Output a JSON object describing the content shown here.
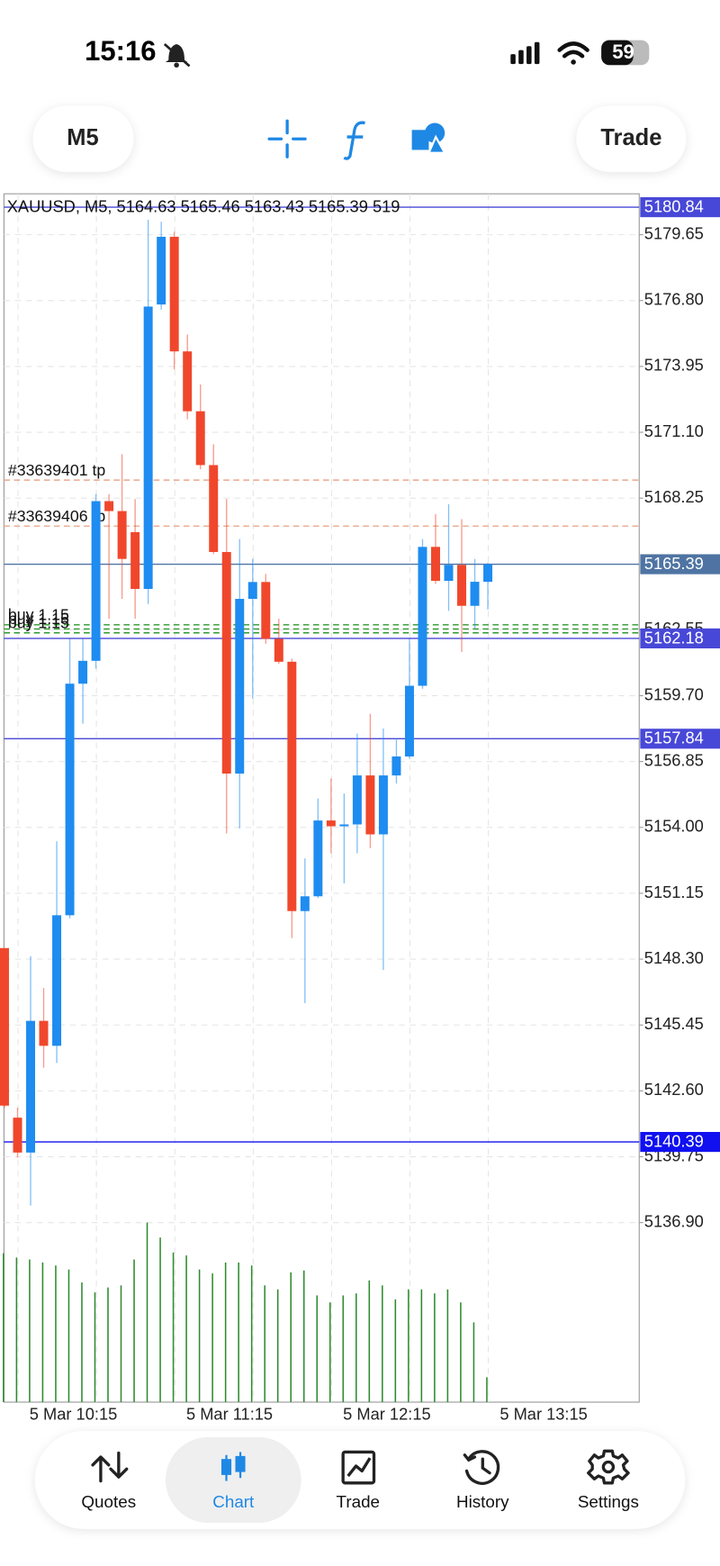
{
  "status_bar": {
    "time": "15:16",
    "battery": "59"
  },
  "toolbar": {
    "timeframe": "M5",
    "trade": "Trade"
  },
  "chart_data": {
    "type": "candlestick",
    "title": "XAUUSD, M5, 5164.63 5165.46 5163.43 5165.39 519",
    "categories": [
      null,
      "5 Mar 10:15",
      null,
      null,
      null,
      null,
      null,
      null,
      null,
      null,
      null,
      null,
      null,
      "5 Mar 11:15",
      null,
      null,
      null,
      null,
      null,
      null,
      null,
      null,
      null,
      null,
      null,
      "5 Mar 12:15",
      null,
      null,
      null,
      null,
      null,
      null,
      null,
      null,
      null,
      null,
      null,
      "5 Mar 13:15"
    ],
    "open": [
      5148.78,
      5141.44,
      5139.93,
      5145.63,
      5144.55,
      5150.2,
      5160.22,
      5161.21,
      5168.12,
      5167.69,
      5166.78,
      5164.32,
      5176.63,
      5179.56,
      5174.6,
      5172.01,
      5169.68,
      5165.92,
      5156.33,
      5163.89,
      5164.62,
      5162.16,
      5161.17,
      5150.38,
      5151.02,
      5154.3,
      5154.05,
      5154.13,
      5156.25,
      5153.7,
      5156.25,
      5157.07,
      5160.13,
      5166.14,
      5164.67,
      5165.36,
      5163.59,
      5164.63
    ],
    "high": [
      5148.78,
      5141.87,
      5148.43,
      5147.05,
      5153.4,
      5162.16,
      5162.16,
      5168.42,
      5168.42,
      5170.15,
      5168.21,
      5180.3,
      5180.21,
      5179.78,
      5175.33,
      5173.17,
      5170.58,
      5168.21,
      5166.48,
      5165.62,
      5164.97,
      5163.03,
      5161.3,
      5152.66,
      5155.25,
      5156.12,
      5155.47,
      5158.06,
      5158.92,
      5158.28,
      5157.85,
      5162.16,
      5166.48,
      5167.56,
      5167.99,
      5167.34,
      5165.62,
      5165.46
    ],
    "low": [
      5141.87,
      5139.71,
      5137.64,
      5143.6,
      5143.81,
      5150.07,
      5158.49,
      5160.87,
      5163.03,
      5163.89,
      5163.03,
      5163.67,
      5176.41,
      5173.82,
      5171.66,
      5169.5,
      5165.83,
      5153.74,
      5153.96,
      5159.57,
      5161.95,
      5161.08,
      5149.21,
      5146.4,
      5150.94,
      5152.88,
      5151.58,
      5152.88,
      5153.1,
      5147.83,
      5155.9,
      5156.98,
      5160.0,
      5164.54,
      5163.37,
      5161.6,
      5162.6,
      5163.43
    ],
    "close": [
      5141.96,
      5139.93,
      5145.63,
      5144.55,
      5150.2,
      5160.22,
      5161.21,
      5168.12,
      5167.69,
      5165.62,
      5164.32,
      5176.54,
      5179.56,
      5174.6,
      5172.01,
      5169.68,
      5165.92,
      5156.33,
      5163.89,
      5164.62,
      5162.16,
      5161.17,
      5150.38,
      5151.02,
      5154.3,
      5154.05,
      5154.13,
      5156.25,
      5153.7,
      5156.25,
      5157.07,
      5160.13,
      5166.14,
      5164.67,
      5165.36,
      5163.59,
      5164.63,
      5165.39
    ],
    "volume": [
      3100,
      3010,
      2969,
      2906,
      2844,
      2761,
      2491,
      2284,
      2387,
      2429,
      2969,
      3737,
      3425,
      3114,
      3052,
      2761,
      2678,
      2906,
      2906,
      2844,
      2429,
      2346,
      2699,
      2740,
      2221,
      2076,
      2221,
      2263,
      2533,
      2429,
      2138,
      2346,
      2346,
      2263,
      2346,
      2076,
      1661,
      519
    ],
    "up_color": "#1e8cf0",
    "down_color": "#f0472c",
    "volume_color": "#2e8b2e",
    "ylim": [
      5129.13,
      5181.42
    ],
    "volume_lim": [
      0,
      3800
    ],
    "yticks": [
      5179.65,
      {
        "value": 5176.8,
        "label": "5176.80"
      },
      5173.95,
      {
        "value": 5171.1,
        "label": "5171.10"
      },
      5168.25,
      5162.55,
      {
        "value": 5159.7,
        "label": "5159.70"
      },
      5156.85,
      {
        "value": 5154,
        "label": "5154.00"
      },
      5151.15,
      {
        "value": 5148.3,
        "label": "5148.30"
      },
      5145.45,
      {
        "value": 5142.6,
        "label": "5142.60"
      },
      5139.75,
      {
        "value": 5136.9,
        "label": "5136.90"
      }
    ],
    "grid": true,
    "orders": [
      {
        "label": "#33639401 tp",
        "value": 5169.03,
        "color": "#e9a88c"
      },
      {
        "label": "#33639406 tp",
        "value": 5167.04,
        "color": "#e9a88c"
      },
      {
        "label": "buy 1.15",
        "value": 5162.77,
        "color": "#2e9a2e"
      },
      {
        "label": "buy 1.15",
        "value": 5162.59,
        "color": "#2e9a2e"
      },
      {
        "label": "buy 1.15",
        "value": 5162.42,
        "color": "#2e9a2e"
      }
    ],
    "levels": [
      {
        "value": 5180.84,
        "color": "#4848d8"
      },
      {
        "value": 5165.39,
        "color": "#4f74a3"
      },
      {
        "value": 5162.18,
        "color": "#4848d8"
      },
      {
        "value": 5157.84,
        "color": "#4848d8"
      },
      {
        "value": 5140.39,
        "color": "#1010f0"
      }
    ]
  },
  "nav": [
    {
      "label": "Quotes"
    },
    {
      "label": "Chart"
    },
    {
      "label": "Trade"
    },
    {
      "label": "History"
    },
    {
      "label": "Settings"
    }
  ]
}
